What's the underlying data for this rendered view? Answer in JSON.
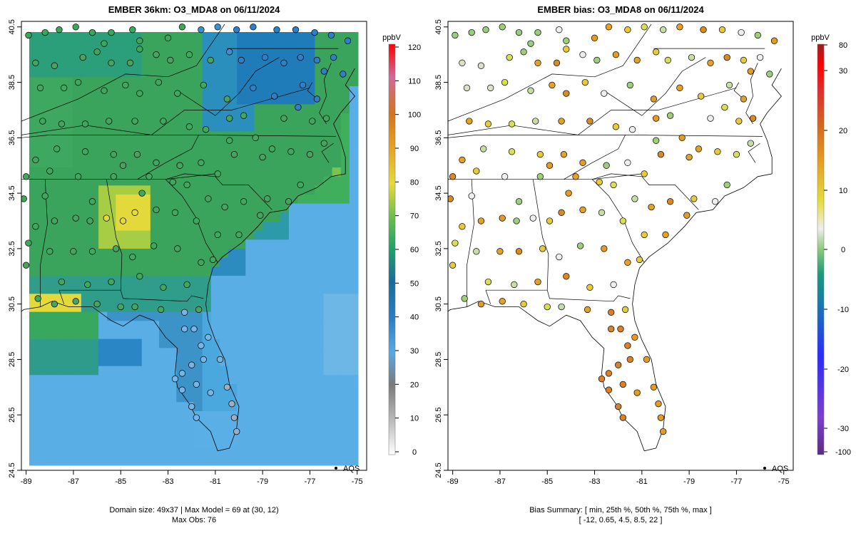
{
  "panels": [
    {
      "title": "EMBER 36km: O3_MDA8 on 06/11/2024",
      "caption_line1": "Domain size: 49x37 | Max Model = 69 at (30, 12)",
      "caption_line2": "Max Obs: 76",
      "legend_label": "AQS",
      "colorbar_unit": "ppbV"
    },
    {
      "title": "EMBER bias: O3_MDA8 on 06/11/2024",
      "caption_line1": "Bias Summary: [ min, 25th %, 50th %, 75th %, max ]",
      "caption_line2": "[ -12,  0.65,  4.5,  8.5,  22 ]",
      "legend_label": "AQS",
      "colorbar_unit": "ppbV"
    }
  ],
  "chart_data": [
    {
      "type": "heatmap",
      "title": "EMBER 36km: O3_MDA8 on 06/11/2024",
      "x_ticks": [
        "-89",
        "-87",
        "-85",
        "-83",
        "-81",
        "-79",
        "-77",
        "-75"
      ],
      "y_ticks": [
        "24.5",
        "26.5",
        "28.5",
        "30.5",
        "32.5",
        "34.5",
        "36.5",
        "38.5",
        "40.5"
      ],
      "xlim": [
        -89.2,
        -74.6
      ],
      "ylim": [
        24.5,
        40.7
      ],
      "colorbar": {
        "unit": "ppbV",
        "ticks": [
          "0",
          "10",
          "20",
          "30",
          "40",
          "50",
          "60",
          "70",
          "80",
          "90",
          "100",
          "110",
          "120"
        ],
        "range": [
          0,
          120
        ]
      },
      "domain_size": "49x37",
      "max_model": 69,
      "max_obs": 76,
      "series": [
        {
          "name": "AQS"
        }
      ],
      "colors": {
        "ocean": "#55abe3",
        "land": "#33a55a",
        "high": "#e5d93a",
        "mid": "#1d8fbf"
      }
    },
    {
      "type": "scatter",
      "title": "EMBER bias: O3_MDA8 on 06/11/2024",
      "x_ticks": [
        "-89",
        "-87",
        "-85",
        "-83",
        "-81",
        "-79",
        "-77",
        "-75"
      ],
      "y_ticks": [
        "24.5",
        "26.5",
        "28.5",
        "30.5",
        "32.5",
        "34.5",
        "36.5",
        "38.5",
        "40.5"
      ],
      "xlim": [
        -89.2,
        -74.6
      ],
      "ylim": [
        24.5,
        40.7
      ],
      "colorbar": {
        "unit": "ppbV",
        "ticks": [
          "80",
          "30",
          "20",
          "10",
          "0",
          "-10",
          "-20",
          "-30",
          "-100"
        ],
        "range": [
          -100,
          80
        ]
      },
      "bias_summary": {
        "min": -12,
        "p25": 0.65,
        "p50": 4.5,
        "p75": 8.5,
        "max": 22
      },
      "series": [
        {
          "name": "AQS"
        }
      ]
    }
  ]
}
